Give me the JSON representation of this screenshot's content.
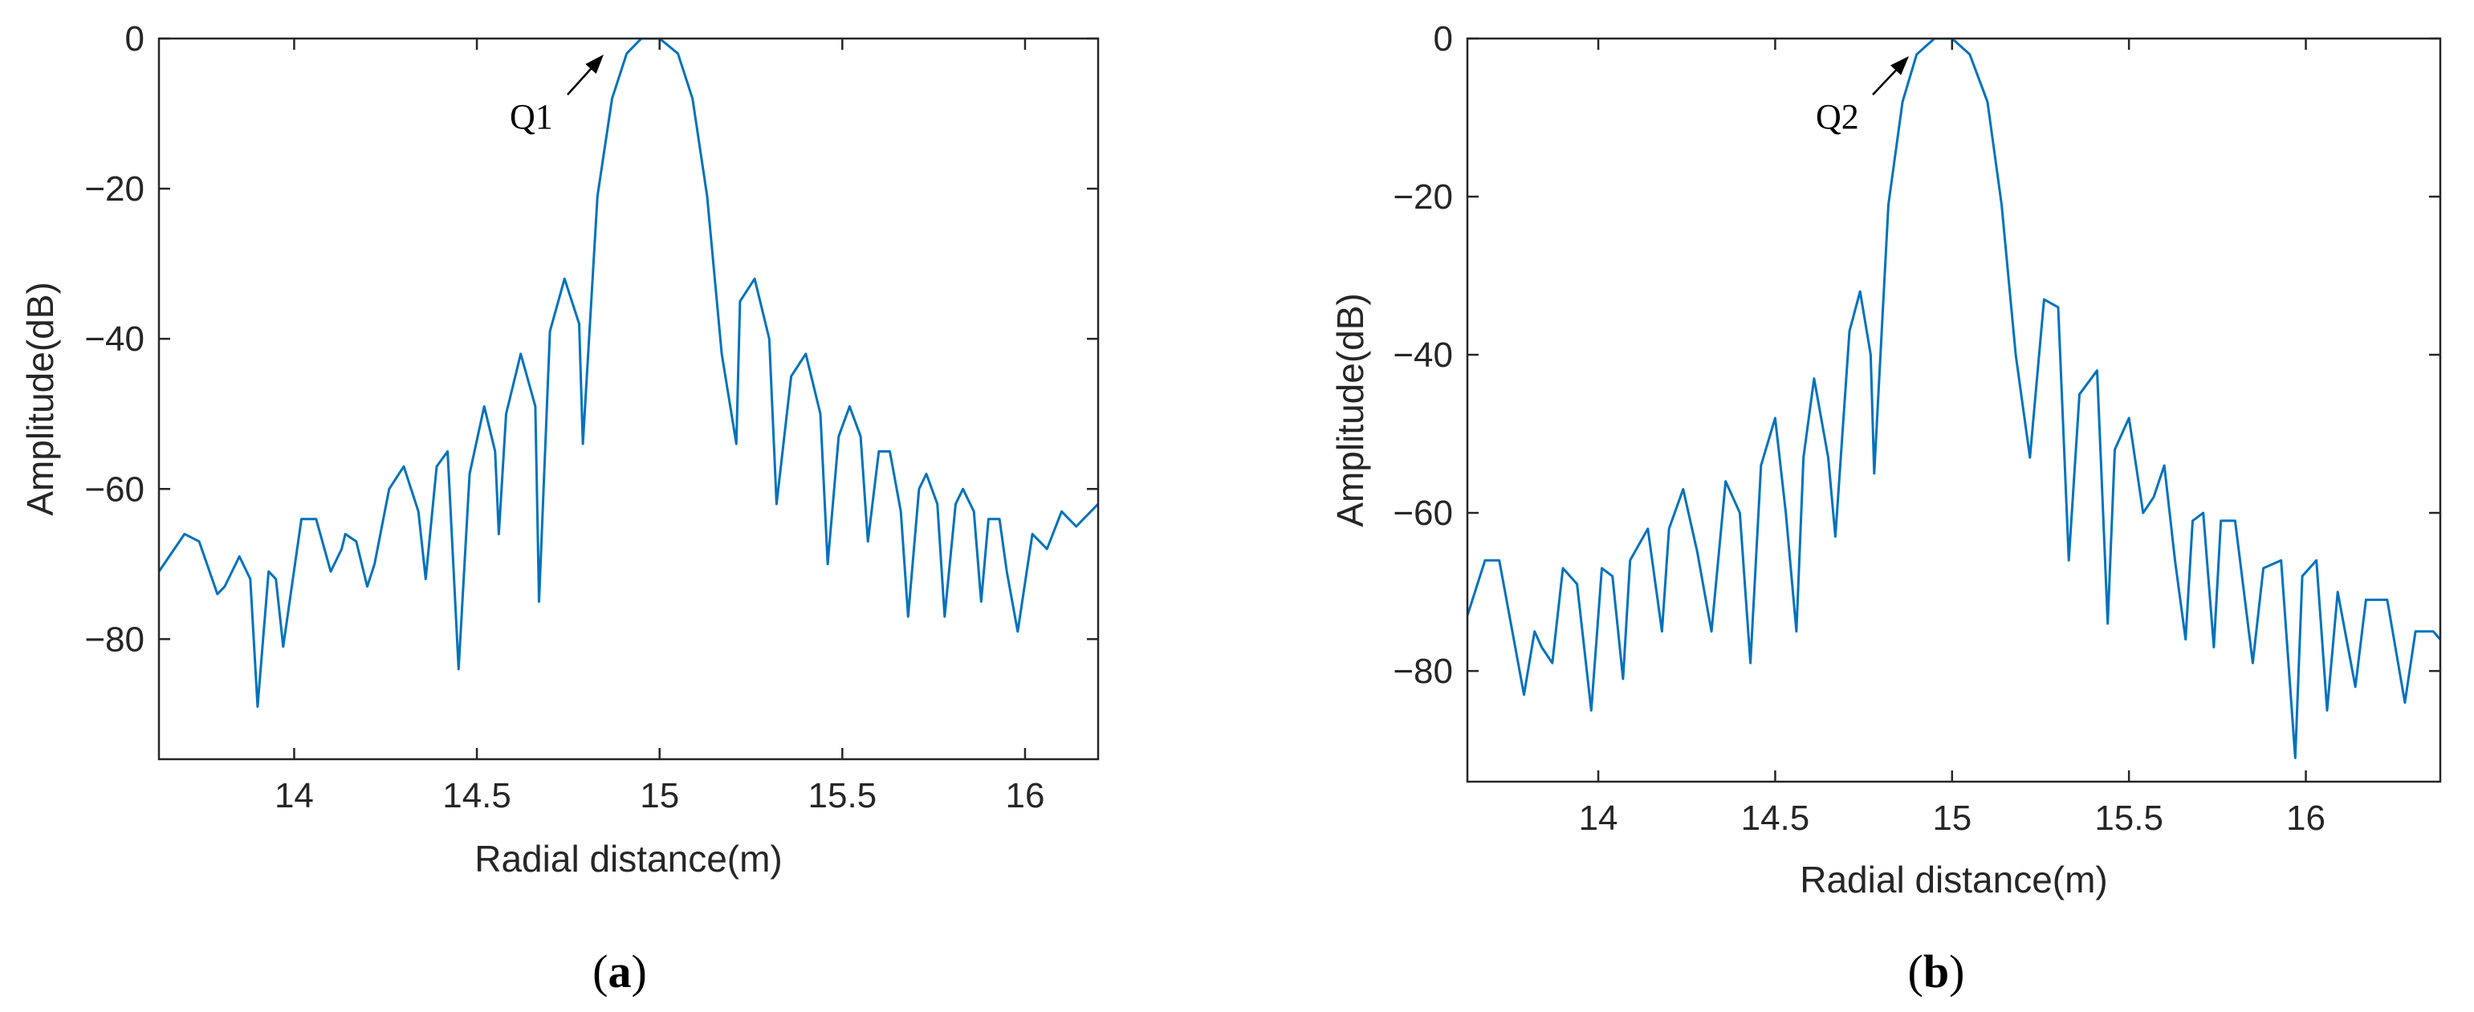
{
  "colors": {
    "line": "#0072BD",
    "axis": "#262626",
    "annotation": "#000000"
  },
  "panels": [
    {
      "label_open": "(",
      "label": "a",
      "label_close": ")"
    },
    {
      "label_open": "(",
      "label": "b",
      "label_close": ")"
    }
  ],
  "chart_data": [
    {
      "type": "line",
      "title": "",
      "xlabel": "Radial distance(m)",
      "ylabel": "Amplitude(dB)",
      "xlim": [
        13.63,
        16.2
      ],
      "ylim": [
        -96,
        0
      ],
      "xticks": [
        14,
        14.5,
        15,
        15.5,
        16
      ],
      "xtick_labels": [
        "14",
        "14.5",
        "15",
        "15.5",
        "16"
      ],
      "yticks": [
        0,
        -20,
        -40,
        -60,
        -80
      ],
      "ytick_labels": [
        "0",
        "−20",
        "−40",
        "−60",
        "−80"
      ],
      "grid": false,
      "annotation": {
        "text": "Q1",
        "target": [
          15.0,
          0
        ]
      },
      "series": [
        {
          "x": [
            13.63,
            13.7,
            13.74,
            13.79,
            13.81,
            13.85,
            13.88,
            13.9,
            13.93,
            13.95,
            13.97,
            14.02,
            14.06,
            14.1,
            14.13,
            14.14,
            14.17,
            14.2,
            14.22,
            14.26,
            14.3,
            14.34,
            14.36,
            14.39,
            14.42,
            14.45,
            14.48,
            14.52,
            14.55,
            14.56,
            14.58,
            14.62,
            14.66,
            14.67,
            14.7,
            14.74,
            14.78,
            14.79,
            14.83,
            14.87,
            14.91,
            14.95,
            15.0,
            15.05,
            15.09,
            15.13,
            15.17,
            15.21,
            15.22,
            15.26,
            15.3,
            15.32,
            15.36,
            15.4,
            15.44,
            15.46,
            15.49,
            15.52,
            15.55,
            15.57,
            15.6,
            15.63,
            15.66,
            15.68,
            15.71,
            15.73,
            15.76,
            15.78,
            15.81,
            15.83,
            15.86,
            15.88,
            15.9,
            15.93,
            15.95,
            15.98,
            16.02,
            16.06,
            16.1,
            16.14,
            16.2
          ],
          "values": [
            -71,
            -66,
            -67,
            -74,
            -73,
            -69,
            -72,
            -89,
            -71,
            -72,
            -81,
            -64,
            -64,
            -71,
            -68,
            -66,
            -67,
            -73,
            -70,
            -60,
            -57,
            -63,
            -72,
            -57,
            -55,
            -84,
            -58,
            -49,
            -55,
            -66,
            -50,
            -42,
            -49,
            -75,
            -39,
            -32,
            -38,
            -54,
            -21,
            -8,
            -2,
            0,
            0,
            -2,
            -8,
            -21,
            -42,
            -54,
            -35,
            -32,
            -40,
            -62,
            -45,
            -42,
            -50,
            -70,
            -53,
            -49,
            -53,
            -67,
            -55,
            -55,
            -63,
            -77,
            -60,
            -58,
            -62,
            -77,
            -62,
            -60,
            -63,
            -75,
            -64,
            -64,
            -71,
            -79,
            -66,
            -68,
            -63,
            -65,
            -62
          ]
        }
      ]
    },
    {
      "type": "line",
      "title": "",
      "xlabel": "Radial distance(m)",
      "ylabel": "Amplitude(dB)",
      "xlim": [
        13.63,
        16.38
      ],
      "ylim": [
        -94,
        0
      ],
      "xticks": [
        14,
        14.5,
        15,
        15.5,
        16
      ],
      "xtick_labels": [
        "14",
        "14.5",
        "15",
        "15.5",
        "16"
      ],
      "yticks": [
        0,
        -20,
        -40,
        -60,
        -80
      ],
      "ytick_labels": [
        "0",
        "−20",
        "−40",
        "−60",
        "−80"
      ],
      "grid": false,
      "annotation": {
        "text": "Q2",
        "target": [
          15.0,
          0
        ]
      },
      "series": [
        {
          "x": [
            13.63,
            13.68,
            13.72,
            13.79,
            13.82,
            13.84,
            13.87,
            13.9,
            13.94,
            13.98,
            14.01,
            14.04,
            14.07,
            14.09,
            14.14,
            14.18,
            14.2,
            14.24,
            14.28,
            14.32,
            14.36,
            14.4,
            14.43,
            14.46,
            14.5,
            14.53,
            14.56,
            14.58,
            14.61,
            14.65,
            14.67,
            14.71,
            14.74,
            14.77,
            14.78,
            14.82,
            14.86,
            14.9,
            14.95,
            15.0,
            15.05,
            15.1,
            15.14,
            15.18,
            15.22,
            15.26,
            15.3,
            15.33,
            15.36,
            15.41,
            15.44,
            15.46,
            15.5,
            15.54,
            15.57,
            15.6,
            15.63,
            15.66,
            15.68,
            15.71,
            15.74,
            15.76,
            15.8,
            15.85,
            15.88,
            15.93,
            15.97,
            15.99,
            16.03,
            16.06,
            16.09,
            16.14,
            16.17,
            16.23,
            16.28,
            16.31,
            16.36,
            16.38
          ],
          "values": [
            -73,
            -66,
            -66,
            -83,
            -75,
            -77,
            -79,
            -67,
            -69,
            -85,
            -67,
            -68,
            -81,
            -66,
            -62,
            -75,
            -62,
            -57,
            -65,
            -75,
            -56,
            -60,
            -79,
            -54,
            -48,
            -60,
            -75,
            -53,
            -43,
            -53,
            -63,
            -37,
            -32,
            -40,
            -55,
            -21,
            -8,
            -2,
            0,
            0,
            -2,
            -8,
            -21,
            -40,
            -53,
            -33,
            -34,
            -66,
            -45,
            -42,
            -74,
            -52,
            -48,
            -60,
            -58,
            -54,
            -66,
            -76,
            -61,
            -60,
            -77,
            -61,
            -61,
            -79,
            -67,
            -66,
            -91,
            -68,
            -66,
            -85,
            -70,
            -82,
            -71,
            -71,
            -84,
            -75,
            -75,
            -76
          ]
        }
      ]
    }
  ]
}
